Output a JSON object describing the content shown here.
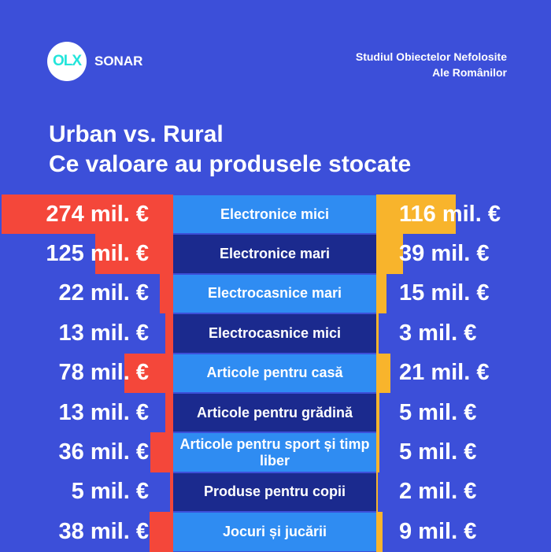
{
  "header": {
    "logo": "OLX",
    "brand": "SONAR",
    "study": [
      "Studiul Obiectelor Nefolosite",
      "Ale Românilor"
    ]
  },
  "chart_data": {
    "type": "butterfly",
    "title": "Urban vs. Rural",
    "subtitle": "Ce valoare au produsele stocate",
    "categories": [
      "Electronice mici",
      "Electronice mari",
      "Electrocasnice mari",
      "Electrocasnice mici",
      "Articole pentru casă",
      "Articole pentru grădină",
      "Articole pentru sport și timp liber",
      "Produse pentru copii",
      "Jocuri și jucării"
    ],
    "series": [
      {
        "color": "#f4473a",
        "values": [
          274,
          125,
          22,
          13,
          78,
          13,
          36,
          5,
          38
        ],
        "value_labels": [
          "274 mil. €",
          "125 mil. €",
          "22 mil. €",
          "13 mil. €",
          "78 mil. €",
          "13 mil. €",
          "36 mil. €",
          "5 mil. €",
          "38 mil. €"
        ]
      },
      {
        "color": "#f8b42c",
        "values": [
          116,
          39,
          15,
          3,
          21,
          5,
          5,
          2,
          9
        ],
        "value_labels": [
          "116 mil. €",
          "39 mil. €",
          "15 mil. €",
          "3 mil. €",
          "21 mil. €",
          "5 mil. €",
          "5 mil. €",
          "2 mil. €",
          "9 mil. €"
        ]
      }
    ],
    "band_colors": [
      "#2f8cf2",
      "#1b2a8e"
    ]
  }
}
